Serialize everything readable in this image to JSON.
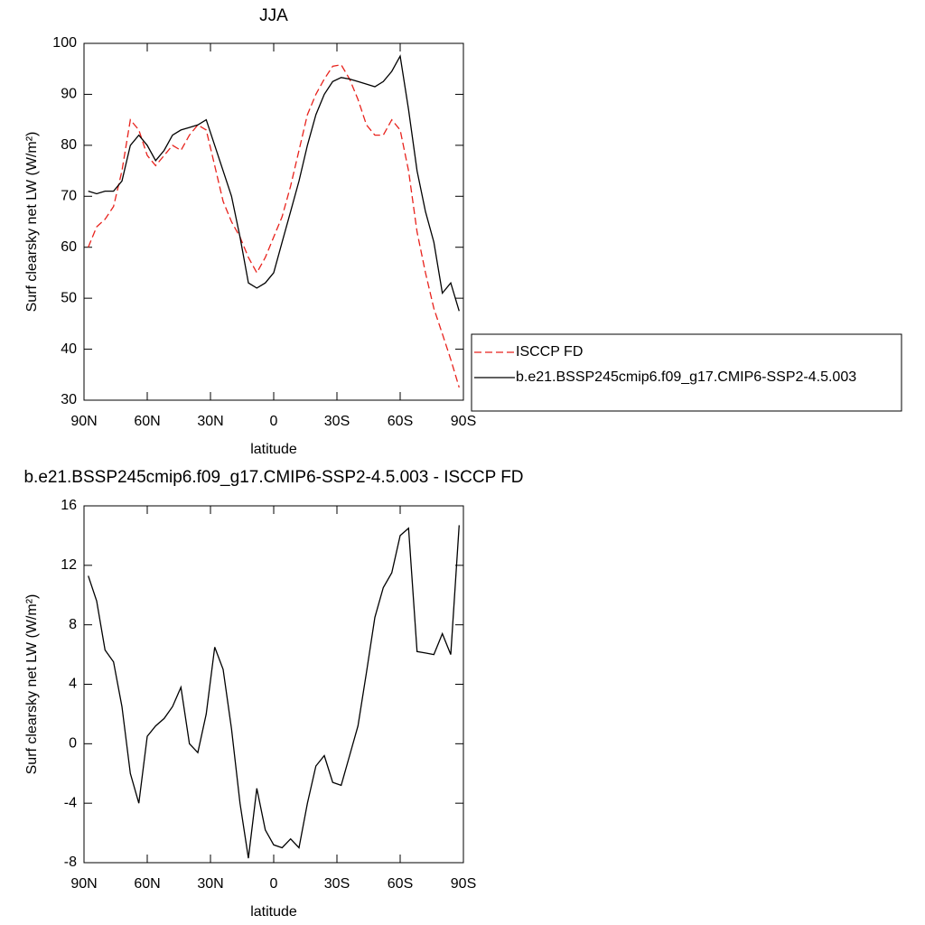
{
  "chart_data": [
    {
      "type": "line",
      "title": "JJA",
      "x_label": "latitude",
      "y_label": "Surf clearsky net LW (W/m²)",
      "x": [
        88,
        84,
        80,
        76,
        72,
        68,
        64,
        60,
        56,
        52,
        48,
        44,
        40,
        36,
        32,
        28,
        24,
        20,
        16,
        12,
        8,
        4,
        0,
        -4,
        -8,
        -12,
        -16,
        -20,
        -24,
        -28,
        -32,
        -36,
        -40,
        -44,
        -48,
        -52,
        -56,
        -60,
        -64,
        -68,
        -72,
        -76,
        -80,
        -84,
        -88
      ],
      "xlim": [
        90,
        -90
      ],
      "xticks": [
        {
          "value": 90,
          "label": "90N"
        },
        {
          "value": 60,
          "label": "60N"
        },
        {
          "value": 30,
          "label": "30N"
        },
        0,
        {
          "value": -30,
          "label": "30S"
        },
        {
          "value": -60,
          "label": "60S"
        },
        {
          "value": -90,
          "label": "90S"
        }
      ],
      "ylim": [
        30,
        100
      ],
      "yticks": [
        30,
        40,
        50,
        60,
        70,
        80,
        90,
        100
      ],
      "legend": "right",
      "series": [
        {
          "name": "ISCCP FD",
          "color": "#e8221c",
          "dashed": true,
          "values": [
            60,
            64,
            65.5,
            68,
            75,
            85,
            83,
            78,
            76,
            78,
            80,
            79,
            82,
            84,
            83,
            76,
            69,
            65,
            62,
            58,
            55,
            58,
            62,
            66,
            72,
            79,
            86,
            90,
            93,
            95.5,
            95.8,
            93,
            89,
            84,
            82,
            82,
            85,
            83,
            75,
            63,
            55,
            48,
            43,
            38,
            32.5
          ]
        },
        {
          "name": "b.e21.BSSP245cmip6.f09_g17.CMIP6-SSP2-4.5.003",
          "color": "#000000",
          "dashed": false,
          "values": [
            71,
            70.5,
            71,
            71,
            73,
            80,
            82,
            80,
            77,
            79,
            82,
            83,
            83.5,
            84,
            85,
            80,
            75,
            70,
            62,
            53,
            52,
            53,
            55,
            61,
            67,
            73,
            80,
            86,
            90,
            92.5,
            93.3,
            93,
            92.5,
            92,
            91.5,
            92.5,
            94.5,
            97.5,
            87,
            75,
            67,
            61,
            51,
            53,
            47.5
          ]
        }
      ]
    },
    {
      "type": "line",
      "title": "b.e21.BSSP245cmip6.f09_g17.CMIP6-SSP2-4.5.003 - ISCCP FD",
      "x_label": "latitude",
      "y_label": "Surf clearsky net LW (W/m²)",
      "x": [
        88,
        84,
        80,
        76,
        72,
        68,
        64,
        60,
        56,
        52,
        48,
        44,
        40,
        36,
        32,
        28,
        24,
        20,
        16,
        12,
        8,
        4,
        0,
        -4,
        -8,
        -12,
        -16,
        -20,
        -24,
        -28,
        -32,
        -36,
        -40,
        -44,
        -48,
        -52,
        -56,
        -60,
        -64,
        -68,
        -72,
        -76,
        -80,
        -84,
        -88
      ],
      "xlim": [
        90,
        -90
      ],
      "xticks": [
        {
          "value": 90,
          "label": "90N"
        },
        {
          "value": 60,
          "label": "60N"
        },
        {
          "value": 30,
          "label": "30N"
        },
        0,
        {
          "value": -30,
          "label": "30S"
        },
        {
          "value": -60,
          "label": "60S"
        },
        {
          "value": -90,
          "label": "90S"
        }
      ],
      "ylim": [
        -8,
        16
      ],
      "yticks": [
        -8,
        -4,
        0,
        4,
        8,
        12,
        16
      ],
      "series": [
        {
          "color": "#000000",
          "dashed": false,
          "values": [
            11.3,
            9.6,
            6.3,
            5.5,
            2.5,
            -2,
            -4,
            0.5,
            1.2,
            1.7,
            2.5,
            3.8,
            0,
            -0.6,
            2,
            6.5,
            5,
            1,
            -4,
            -7.7,
            -3,
            -5.8,
            -6.8,
            -7,
            -6.4,
            -7,
            -4,
            -1.5,
            -0.8,
            -2.6,
            -2.8,
            -0.8,
            1.2,
            4.8,
            8.5,
            10.5,
            11.5,
            14,
            14.5,
            6.2,
            6.1,
            6,
            7.4,
            6,
            14.7
          ]
        }
      ]
    }
  ]
}
